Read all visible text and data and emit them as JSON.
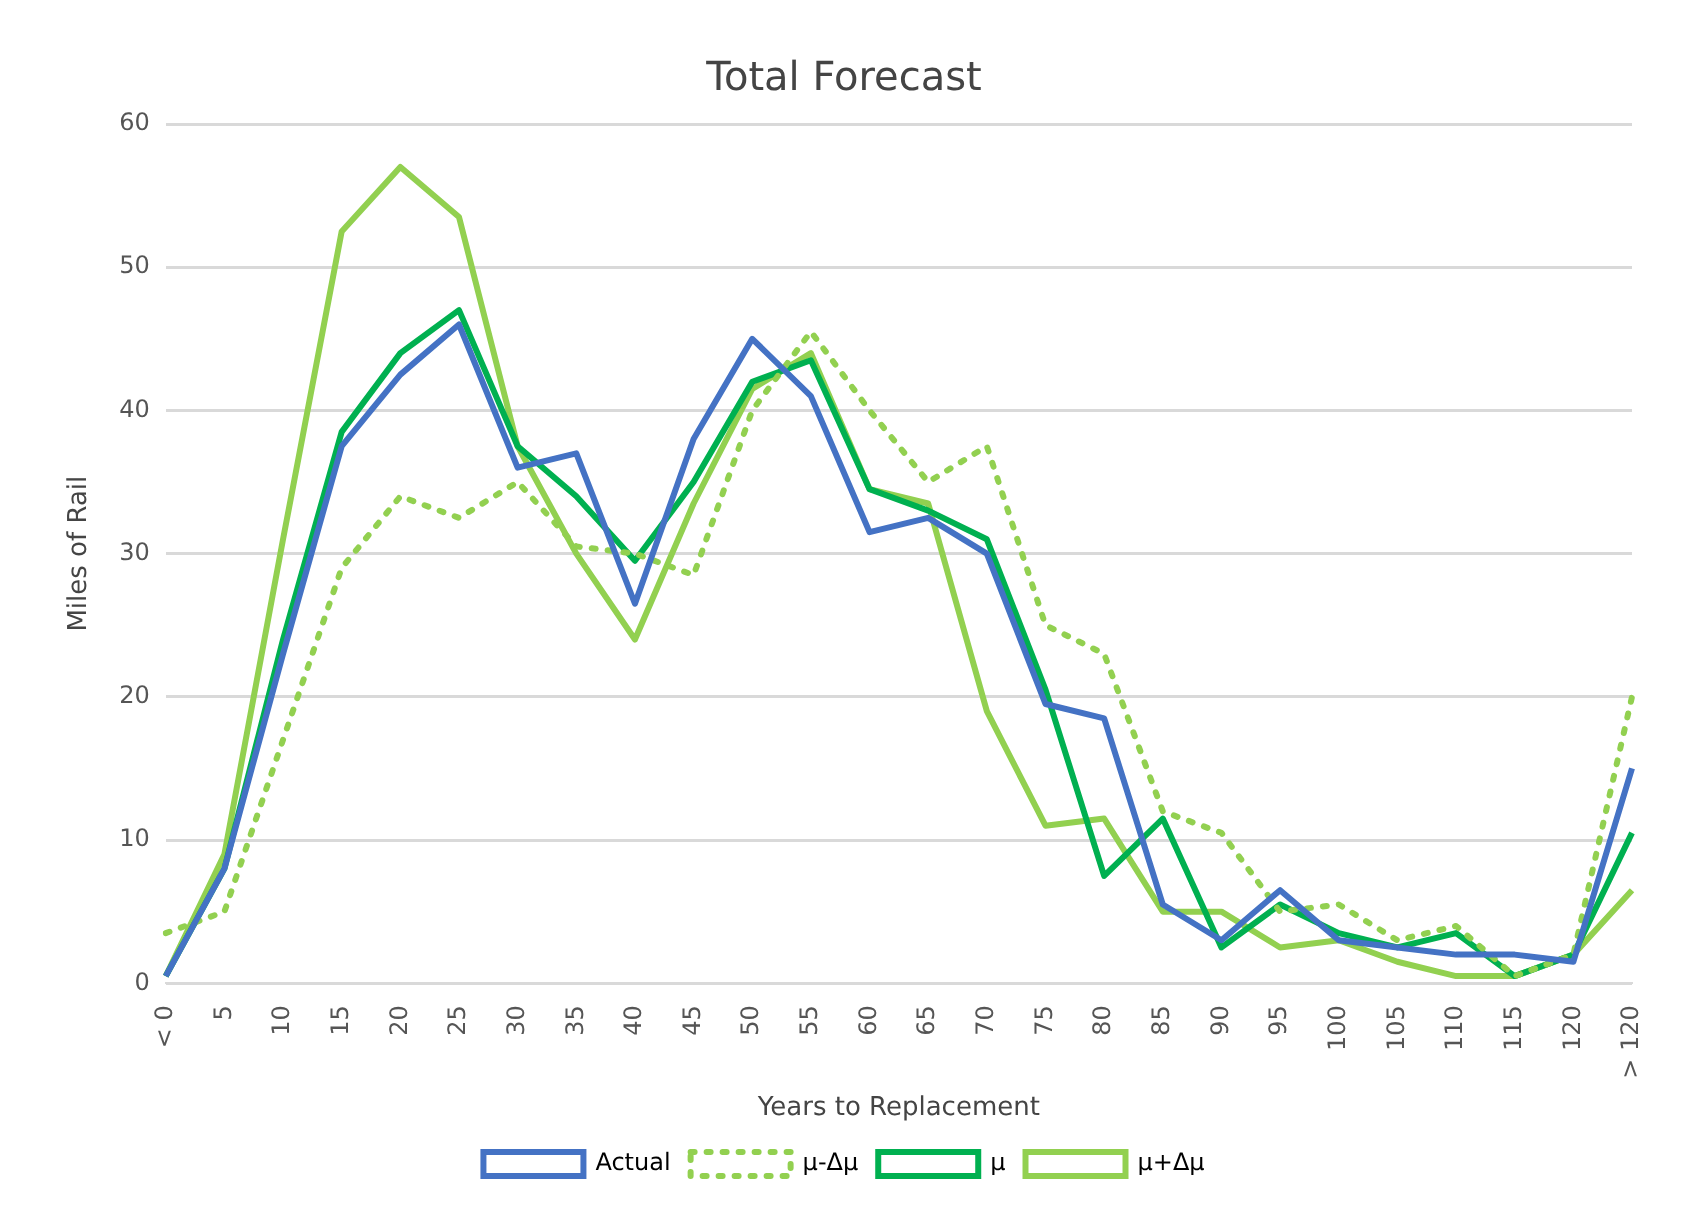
{
  "chart_data": {
    "type": "line",
    "title": "Total Forecast",
    "xlabel": "Years to Replacement",
    "ylabel": "Miles of Rail",
    "categories": [
      "< 0",
      "5",
      "10",
      "15",
      "20",
      "25",
      "30",
      "35",
      "40",
      "45",
      "50",
      "55",
      "60",
      "65",
      "70",
      "75",
      "80",
      "85",
      "90",
      "95",
      "100",
      "105",
      "110",
      "115",
      "120",
      "> 120"
    ],
    "series": [
      {
        "name": "Actual",
        "color": "#4472c4",
        "line_style": "solid",
        "values": [
          0.5,
          8,
          23,
          37.5,
          42.5,
          46,
          36,
          37,
          26.5,
          38,
          45,
          41,
          31.5,
          32.5,
          30,
          19.5,
          18.5,
          5.5,
          3,
          6.5,
          3,
          2.5,
          2,
          2,
          1.5,
          15
        ]
      },
      {
        "name": "μ-Δμ",
        "color": "#92d050",
        "line_style": "dotted",
        "values": [
          3.5,
          5,
          17,
          29,
          34,
          32.5,
          35,
          30.5,
          30,
          28.5,
          40,
          45.5,
          40,
          35,
          37.5,
          25,
          23,
          12,
          10.5,
          5,
          5.5,
          3,
          4,
          0.5,
          2,
          20
        ]
      },
      {
        "name": "μ",
        "color": "#00b050",
        "line_style": "solid",
        "values": [
          0.5,
          8,
          24,
          38.5,
          44,
          47,
          37.5,
          34,
          29.5,
          35,
          42,
          43.5,
          34.5,
          33,
          31,
          20.5,
          7.5,
          11.5,
          2.5,
          5.5,
          3.5,
          2.5,
          3.5,
          0.5,
          2,
          10.5
        ]
      },
      {
        "name": "μ+Δμ",
        "color": "#92d050",
        "line_style": "solid",
        "values": [
          0.5,
          9,
          31,
          52.5,
          57,
          53.5,
          37.5,
          30,
          24,
          33.5,
          41.5,
          44,
          34.5,
          33.5,
          19,
          11,
          11.5,
          5,
          5,
          2.5,
          3,
          1.5,
          0.5,
          0.5,
          2,
          6.5
        ]
      }
    ],
    "ylim": [
      0,
      60
    ],
    "yticks": [
      0,
      10,
      20,
      30,
      40,
      50,
      60
    ],
    "grid": "y",
    "legend": "bottom",
    "marker": "none"
  }
}
